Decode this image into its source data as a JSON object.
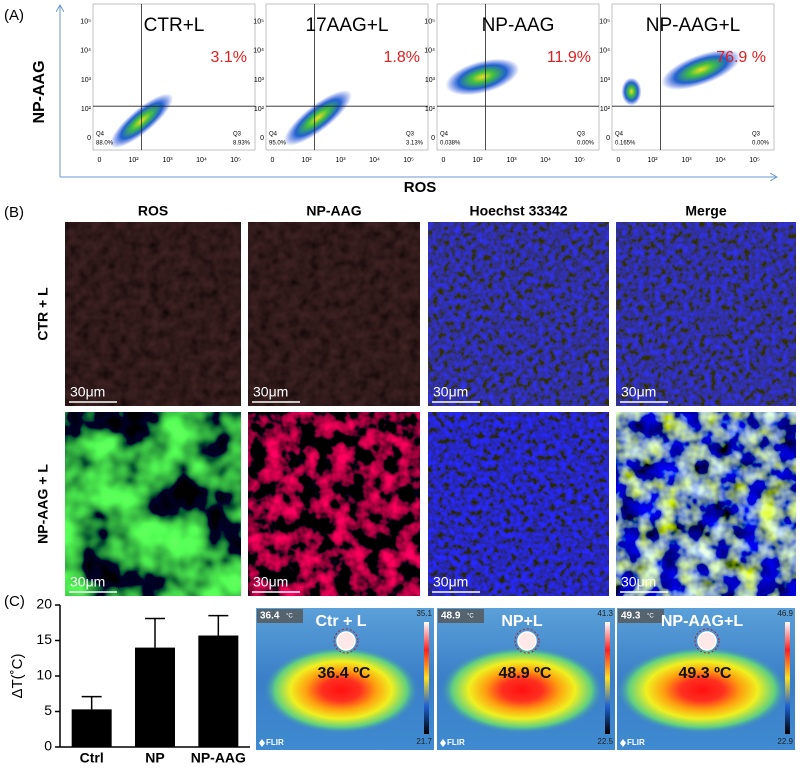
{
  "panel_a": {
    "label": "(A)",
    "y_axis_label": "NP-AAG",
    "x_axis_label": "ROS",
    "tick_labels": [
      "0",
      "10²",
      "10³",
      "10⁴",
      "10⁵"
    ],
    "quadrant_labels": [
      "Q4",
      "Q3"
    ],
    "plots": [
      {
        "title": "CTR+L",
        "percent": "3.1%",
        "q4": "88.0%",
        "q3": "8.93%"
      },
      {
        "title": "17AAG+L",
        "percent": "1.8%",
        "q4": "95.0%",
        "q3": "3.13%"
      },
      {
        "title": "NP-AAG",
        "percent": "11.9%",
        "q4": "0.038%",
        "q3": "0.00%"
      },
      {
        "title": "NP-AAG+L",
        "percent": "76.9 %",
        "q4": "0.165%",
        "q3": "0.00%"
      }
    ]
  },
  "panel_b": {
    "label": "(B)",
    "columns": [
      "ROS",
      "NP-AAG",
      "Hoechst 33342",
      "Merge"
    ],
    "rows": [
      "CTR + L",
      "NP-AAG + L"
    ],
    "scale_bar": "30μm"
  },
  "panel_c": {
    "label": "(C)",
    "thermal_images": [
      {
        "label": "Ctr + L",
        "temperature": "36.4 ºC",
        "corner": "36.4",
        "corner_unit": "°C",
        "scale_max": "35.1",
        "scale_min": "21.7",
        "brand": "FLIR"
      },
      {
        "label": "NP+L",
        "temperature": "48.9 ºC",
        "corner": "48.9",
        "corner_unit": "°C",
        "scale_max": "41.3",
        "scale_min": "22.5",
        "brand": "FLIR"
      },
      {
        "label": "NP-AAG+L",
        "temperature": "49.3 ºC",
        "corner": "49.3",
        "corner_unit": "°C",
        "scale_max": "46.9",
        "scale_min": "22.9",
        "brand": "FLIR"
      }
    ]
  },
  "chart_data": {
    "type": "bar",
    "y_label": "ΔT(˚C)",
    "categories": [
      "Ctrl",
      "NP",
      "NP-AAG"
    ],
    "values": [
      5.3,
      14,
      15.7
    ],
    "errors": [
      1.8,
      4.1,
      2.8
    ],
    "color": "#000000",
    "ylim": [
      0,
      20
    ],
    "yticks": [
      0,
      5,
      10,
      15,
      20
    ]
  }
}
